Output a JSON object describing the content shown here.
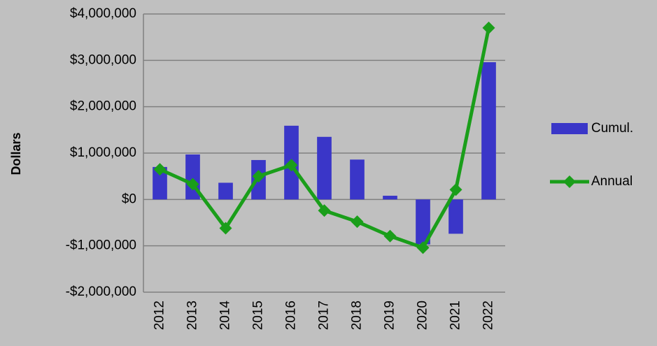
{
  "chart_data": {
    "type": "bar",
    "y_label": "Dollars",
    "categories": [
      "2012",
      "2013",
      "2014",
      "2015",
      "2016",
      "2017",
      "2018",
      "2019",
      "2020",
      "2021",
      "2022"
    ],
    "series": [
      {
        "name": "Cumul.",
        "type": "bar",
        "color": "#3a36c8",
        "values": [
          700000,
          970000,
          360000,
          850000,
          1590000,
          1350000,
          860000,
          80000,
          -970000,
          -740000,
          2960000
        ]
      },
      {
        "name": "Annual",
        "type": "line",
        "color": "#1a9e1a",
        "values": [
          650000,
          330000,
          -620000,
          500000,
          740000,
          -240000,
          -480000,
          -790000,
          -1040000,
          210000,
          3700000
        ]
      }
    ],
    "ylim": [
      -2000000,
      4000000
    ],
    "yticks": [
      {
        "value": -2000000,
        "label": "-$2,000,000"
      },
      {
        "value": -1000000,
        "label": "-$1,000,000"
      },
      {
        "value": 0,
        "label": "$0"
      },
      {
        "value": 1000000,
        "label": "$1,000,000"
      },
      {
        "value": 2000000,
        "label": "$2,000,000"
      },
      {
        "value": 3000000,
        "label": "$3,000,000"
      },
      {
        "value": 4000000,
        "label": "$4,000,000"
      }
    ],
    "grid": true,
    "legend": "right"
  }
}
